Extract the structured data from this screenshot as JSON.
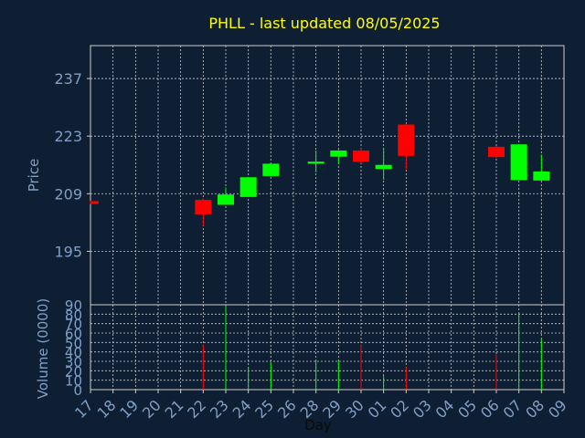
{
  "chart_data": {
    "type": "candlestick",
    "title": "PHLL - last updated 08/05/2025",
    "price_panel": {
      "ylabel": "Price",
      "yticks": [
        195,
        209,
        223,
        237
      ],
      "ylim": [
        182,
        245
      ]
    },
    "volume_panel": {
      "ylabel": "Volume (0000)",
      "yticks": [
        0,
        10,
        20,
        30,
        40,
        50,
        60,
        70,
        80,
        90
      ],
      "ylim": [
        0,
        90
      ]
    },
    "xlabel": "Day",
    "x_ticks": [
      "17",
      "18",
      "19",
      "20",
      "21",
      "22",
      "23",
      "24",
      "25",
      "26",
      "28",
      "29",
      "30",
      "01",
      "02",
      "03",
      "04",
      "05",
      "06",
      "07",
      "08",
      "09"
    ],
    "candles": [
      {
        "day": "17",
        "open": 207.2,
        "high": 207.3,
        "low": 206.5,
        "close": 206.6,
        "volume": 0
      },
      {
        "day": "22",
        "open": 207.5,
        "high": 207.8,
        "low": 201.2,
        "close": 204.0,
        "volume": 48
      },
      {
        "day": "23",
        "open": 206.3,
        "high": 210.5,
        "low": 206.3,
        "close": 208.8,
        "volume": 88
      },
      {
        "day": "24",
        "open": 208.2,
        "high": 213.0,
        "low": 208.2,
        "close": 213.0,
        "volume": 24
      },
      {
        "day": "25",
        "open": 213.3,
        "high": 216.6,
        "low": 213.2,
        "close": 216.3,
        "volume": 29
      },
      {
        "day": "28",
        "open": 216.3,
        "high": 219.5,
        "low": 214.2,
        "close": 216.8,
        "volume": 32
      },
      {
        "day": "29",
        "open": 218.0,
        "high": 219.6,
        "low": 216.3,
        "close": 219.5,
        "volume": 31
      },
      {
        "day": "30",
        "open": 219.5,
        "high": 220.0,
        "low": 216.4,
        "close": 216.8,
        "volume": 47
      },
      {
        "day": "01",
        "open": 215.0,
        "high": 220.0,
        "low": 212.4,
        "close": 216.0,
        "volume": 15
      },
      {
        "day": "02",
        "open": 225.8,
        "high": 226.0,
        "low": 215.0,
        "close": 218.2,
        "volume": 24
      },
      {
        "day": "06",
        "open": 220.4,
        "high": 220.6,
        "low": 217.6,
        "close": 217.9,
        "volume": 37
      },
      {
        "day": "07",
        "open": 212.3,
        "high": 221.1,
        "low": 212.3,
        "close": 221.0,
        "volume": 82
      },
      {
        "day": "08",
        "open": 212.2,
        "high": 218.5,
        "low": 212.2,
        "close": 214.4,
        "volume": 54
      }
    ],
    "colors": {
      "background": "#0f1f33",
      "up": "#00ff00",
      "down": "#ff0000",
      "grid": "#cccccc",
      "axis_text": "#7f9fc6",
      "title": "#ffff00"
    },
    "grid": true
  }
}
